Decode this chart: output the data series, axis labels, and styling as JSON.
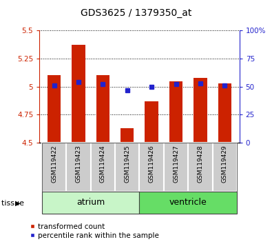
{
  "title": "GDS3625 / 1379350_at",
  "samples": [
    "GSM119422",
    "GSM119423",
    "GSM119424",
    "GSM119425",
    "GSM119426",
    "GSM119427",
    "GSM119428",
    "GSM119429"
  ],
  "transformed_count": [
    5.1,
    5.37,
    5.1,
    4.63,
    4.87,
    5.05,
    5.08,
    5.03
  ],
  "percentile_rank": [
    51,
    54,
    52,
    47,
    50,
    52,
    53,
    51
  ],
  "tissue_groups": [
    {
      "label": "atrium",
      "start": 0,
      "end": 4,
      "color": "#c8f5c8"
    },
    {
      "label": "ventricle",
      "start": 4,
      "end": 8,
      "color": "#66dd66"
    }
  ],
  "ylim_left": [
    4.5,
    5.5
  ],
  "ylim_right": [
    0,
    100
  ],
  "yticks_left": [
    4.5,
    4.75,
    5.0,
    5.25,
    5.5
  ],
  "yticks_right": [
    0,
    25,
    50,
    75,
    100
  ],
  "bar_color": "#cc2200",
  "marker_color": "#2222cc",
  "bar_width": 0.55,
  "bar_bottom": 4.5,
  "grid_color": "#000000",
  "tick_label_color_left": "#cc2200",
  "tick_label_color_right": "#2222cc",
  "legend_items": [
    "transformed count",
    "percentile rank within the sample"
  ],
  "title_fontsize": 10,
  "tick_fontsize": 7.5,
  "sample_fontsize": 6.5,
  "tissue_fontsize": 9,
  "legend_fontsize": 7.5
}
